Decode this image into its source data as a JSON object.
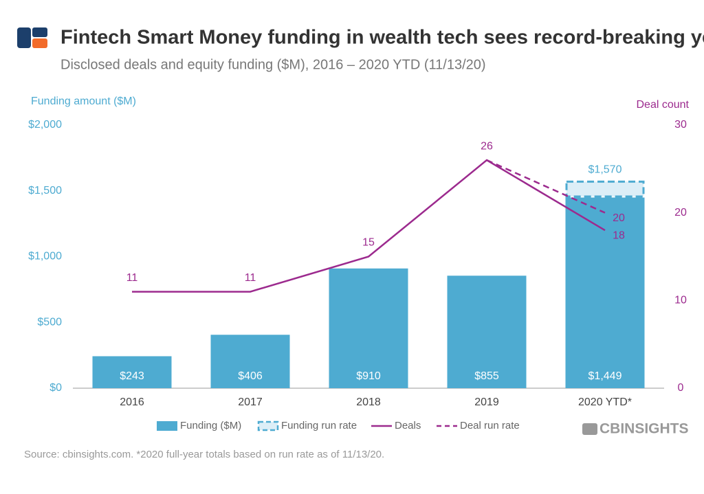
{
  "chart_data": {
    "type": "bar",
    "title": "Fintech Smart Money funding in wealth tech sees record-breaking year",
    "subtitle": "Disclosed deals and equity funding ($M), 2016 – 2020 YTD (11/13/20)",
    "ylabel": "Funding amount ($M)",
    "y2label": "Deal count",
    "categories": [
      "2016",
      "2017",
      "2018",
      "2019",
      "2020 YTD*"
    ],
    "series": [
      {
        "name": "Funding ($M)",
        "type": "bar",
        "color": "#4eabd1",
        "values": [
          243,
          406,
          910,
          855,
          1449
        ],
        "value_labels": [
          "$243",
          "$406",
          "$910",
          "$855",
          "$1,449"
        ]
      },
      {
        "name": "Funding run rate",
        "type": "bar-outline",
        "color": "#4eabd1",
        "values": [
          null,
          null,
          null,
          null,
          1570
        ],
        "value_labels": [
          null,
          null,
          null,
          null,
          "$1,570"
        ]
      },
      {
        "name": "Deals",
        "type": "line",
        "axis": "y2",
        "color": "#9c2a8e",
        "values": [
          11,
          11,
          15,
          26,
          18
        ]
      },
      {
        "name": "Deal run rate",
        "type": "line-dashed",
        "axis": "y2",
        "color": "#9c2a8e",
        "values": [
          null,
          null,
          null,
          26,
          20
        ]
      }
    ],
    "ylim": [
      0,
      2000
    ],
    "yticks": [
      {
        "value": 0,
        "label": "$0"
      },
      {
        "value": 500,
        "label": "$500"
      },
      {
        "value": 1000,
        "label": "$1,000"
      },
      {
        "value": 1500,
        "label": "$1,500"
      },
      {
        "value": 2000,
        "label": "$2,000"
      }
    ],
    "y2lim": [
      0,
      30
    ],
    "y2ticks": [
      0,
      10,
      20,
      30
    ],
    "source": "Source: cbinsights.com. *2020 full-year totals based on run rate as of 11/13/20.",
    "logo": "CBINSIGHTS"
  }
}
